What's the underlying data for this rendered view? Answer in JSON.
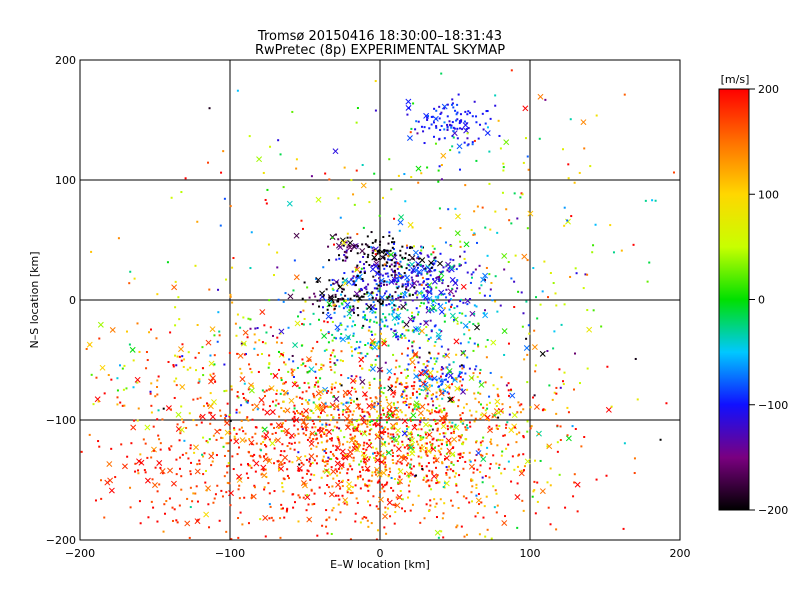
{
  "chart_data": {
    "type": "scatter",
    "title": "Tromsø 20150416 18:30:00–18:31:43",
    "subtitle": "RwPretec (8p) EXPERIMENTAL SKYMAP",
    "xlabel": "E–W location [km]",
    "ylabel": "N–S location [km]",
    "xlim": [
      -200,
      200
    ],
    "ylim": [
      -200,
      200
    ],
    "xticks": [
      "−200",
      "−100",
      "0",
      "100",
      "200"
    ],
    "yticks": [
      "−200",
      "−100",
      "0",
      "100",
      "200"
    ],
    "grid": true,
    "colorbar": {
      "label": "[m/s]",
      "range": [
        -200,
        200
      ],
      "ticks": [
        "200",
        "100",
        "0",
        "−100",
        "−200"
      ]
    },
    "markers": [
      "x",
      "dot"
    ],
    "clusters": [
      {
        "x": -20,
        "y": -120,
        "sx": 55,
        "sy": 35,
        "n": 900,
        "vmean": 170,
        "vsd": 50
      },
      {
        "x": 20,
        "y": -110,
        "sx": 35,
        "sy": 28,
        "n": 320,
        "vmean": 110,
        "vsd": 90
      },
      {
        "x": -90,
        "y": -145,
        "sx": 55,
        "sy": 35,
        "n": 260,
        "vmean": 185,
        "vsd": 25
      },
      {
        "x": 0,
        "y": -60,
        "sx": 55,
        "sy": 35,
        "n": 420,
        "vmean": 10,
        "vsd": 110
      },
      {
        "x": 15,
        "y": -10,
        "sx": 35,
        "sy": 18,
        "n": 280,
        "vmean": -50,
        "vsd": 45
      },
      {
        "x": 15,
        "y": 20,
        "sx": 25,
        "sy": 12,
        "n": 260,
        "vmean": -115,
        "vsd": 25
      },
      {
        "x": -15,
        "y": 5,
        "sx": 20,
        "sy": 8,
        "n": 90,
        "vmean": -195,
        "vsd": 15
      },
      {
        "x": 5,
        "y": 38,
        "sx": 15,
        "sy": 8,
        "n": 90,
        "vmean": -205,
        "vsd": 12
      },
      {
        "x": -20,
        "y": 45,
        "sx": 6,
        "sy": 4,
        "n": 25,
        "vmean": -170,
        "vsd": 20
      },
      {
        "x": 48,
        "y": 148,
        "sx": 12,
        "sy": 10,
        "n": 110,
        "vmean": -100,
        "vsd": 12
      },
      {
        "x": 40,
        "y": -65,
        "sx": 12,
        "sy": 8,
        "n": 60,
        "vmean": -85,
        "vsd": 15
      },
      {
        "x": 50,
        "y": 70,
        "sx": 60,
        "sy": 45,
        "n": 160,
        "vmean": 40,
        "vsd": 80
      },
      {
        "x": -120,
        "y": -70,
        "sx": 50,
        "sy": 35,
        "n": 200,
        "vmean": 130,
        "vsd": 70
      },
      {
        "x": 60,
        "y": -130,
        "sx": 50,
        "sy": 40,
        "n": 200,
        "vmean": 140,
        "vsd": 70
      },
      {
        "x": 0,
        "y": 0,
        "sx": 130,
        "sy": 110,
        "n": 220,
        "vmean": 70,
        "vsd": 120
      }
    ]
  }
}
